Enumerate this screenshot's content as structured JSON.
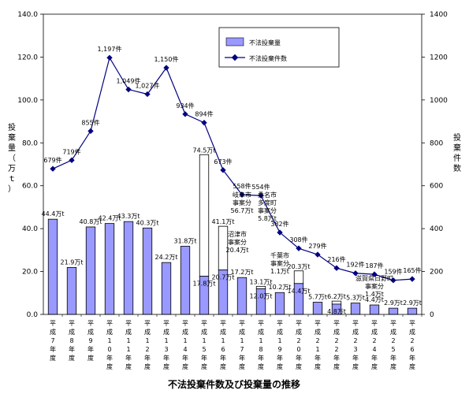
{
  "chart_data": {
    "type": "bar",
    "title": "不法投棄件数及び投棄量の推移",
    "ylabel_left": "投棄量（万ｔ）",
    "ylabel_right": "投棄件数",
    "ylim_left": [
      0,
      140
    ],
    "ylim_right": [
      0,
      1400
    ],
    "left_ticks": [
      "0.0",
      "20.0",
      "40.0",
      "60.0",
      "80.0",
      "100.0",
      "120.0",
      "140.0"
    ],
    "right_ticks": [
      "0",
      "200",
      "400",
      "600",
      "800",
      "1000",
      "1200",
      "1400"
    ],
    "legend_position": "top-right",
    "categories": [
      "平成7年度",
      "平成8年度",
      "平成9年度",
      "平成10年度",
      "平成11年度",
      "平成12年度",
      "平成13年度",
      "平成14年度",
      "平成15年度",
      "平成16年度",
      "平成17年度",
      "平成18年度",
      "平成19年度",
      "平成20年度",
      "平成21年度",
      "平成22年度",
      "平成23年度",
      "平成24年度",
      "平成25年度",
      "平成26年度"
    ],
    "series": [
      {
        "name": "不法投棄量",
        "type": "bar",
        "axis": "left",
        "color": "#9999ff",
        "values": [
          44.4,
          21.9,
          40.8,
          42.4,
          43.3,
          40.3,
          24.2,
          31.8,
          17.8,
          20.7,
          17.2,
          12.0,
          10.2,
          14.4,
          5.7,
          4.8,
          5.3,
          4.4,
          2.9,
          2.9
        ],
        "labels": [
          "44.4万t",
          "21.9万t",
          "40.8万t",
          "42.4万t",
          "43.3万t",
          "40.3万t",
          "24.2万t",
          "31.8万t",
          "17.8万t",
          "20.7万t",
          "17.2万t",
          "12.0万t",
          "10.2万t",
          "14.4万t",
          "5.7万t",
          "4.8万t",
          "5.3万t",
          "4.4万t",
          "2.9万t",
          "2.9万t"
        ]
      },
      {
        "name": "不法投棄件数",
        "type": "line",
        "axis": "right",
        "color": "#000080",
        "values": [
          679,
          719,
          855,
          1197,
          1049,
          1027,
          1150,
          934,
          894,
          673,
          558,
          554,
          382,
          308,
          279,
          216,
          192,
          187,
          159,
          165
        ],
        "labels": [
          "679件",
          "719件",
          "855件",
          "1,197件",
          "1,049件",
          "1,027件",
          "1,150件",
          "934件",
          "894件",
          "673件",
          "558件",
          "554件",
          "382件",
          "308件",
          "279件",
          "216件",
          "192件",
          "187件",
          "159件",
          "165件"
        ]
      }
    ],
    "stacked_extras": [
      {
        "category_index": 8,
        "total": 74.5,
        "total_label": "74.5万t"
      },
      {
        "category_index": 9,
        "total": 41.1,
        "total_label": "41.1万t"
      },
      {
        "category_index": 11,
        "total": 13.1,
        "total_label": "13.1万t"
      },
      {
        "category_index": 13,
        "total": 20.3,
        "total_label": "20.3万t"
      },
      {
        "category_index": 15,
        "total": 6.2,
        "total_label": "6.2万t"
      }
    ],
    "annotations": [
      {
        "category_index": 10,
        "lines": [
          "岐阜市",
          "事案分",
          "56.7万t"
        ]
      },
      {
        "category_index": 11,
        "lines": [
          "桑名市",
          "多度町",
          "事案分",
          "5.8万t"
        ]
      },
      {
        "category_index": 10,
        "lines": [
          "沼津市",
          "事案分",
          "20.4万t"
        ]
      },
      {
        "category_index": 12,
        "lines": [
          "千葉市",
          "事案分",
          "1.1万t"
        ]
      },
      {
        "category_index": 17,
        "lines": [
          "滋賀県日野町",
          "事案分",
          "1.4万t"
        ]
      }
    ]
  }
}
